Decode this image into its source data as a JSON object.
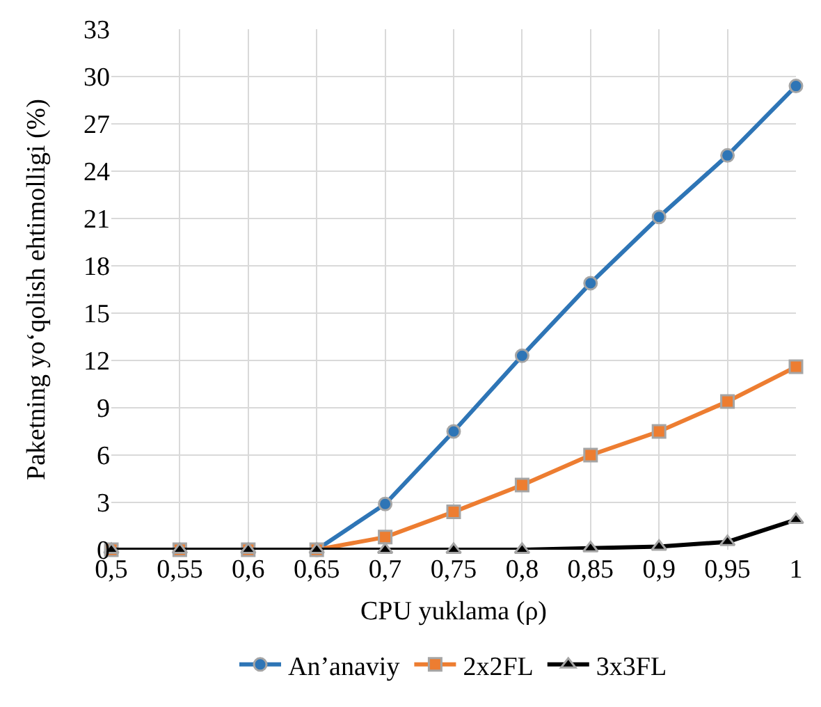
{
  "chart_data": {
    "type": "line",
    "xlabel": "CPU yuklama (ρ)",
    "ylabel": "Paketning yo‘qolish ehtimolligi (%)",
    "categories": [
      "0,5",
      "0,55",
      "0,6",
      "0,65",
      "0,7",
      "0,75",
      "0,8",
      "0,85",
      "0,9",
      "0,95",
      "1"
    ],
    "series": [
      {
        "name": "An’anaviy",
        "color": "#2e75b6",
        "marker": "circle",
        "values": [
          null,
          null,
          null,
          0,
          2.9,
          7.5,
          12.3,
          16.9,
          21.1,
          25.0,
          29.4
        ]
      },
      {
        "name": "2x2FL",
        "color": "#ed7d31",
        "marker": "square",
        "values": [
          0,
          0,
          0,
          0,
          0.8,
          2.4,
          4.1,
          6.0,
          7.5,
          9.4,
          11.6
        ]
      },
      {
        "name": "3x3FL",
        "color": "#000000",
        "marker": "triangle",
        "values": [
          0,
          0,
          0,
          0,
          0,
          0,
          0,
          0.1,
          0.2,
          0.5,
          1.9
        ]
      }
    ],
    "ylim": [
      0,
      33
    ],
    "yticks": [
      0,
      3,
      6,
      9,
      12,
      15,
      18,
      21,
      24,
      27,
      30,
      33
    ],
    "grid": true,
    "legend": "bottom",
    "line_style": "solid"
  }
}
